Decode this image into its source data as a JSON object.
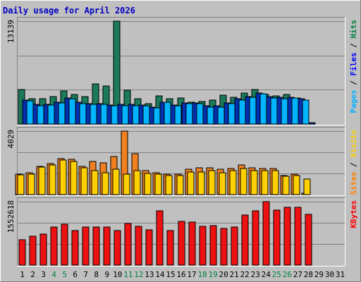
{
  "chart_data": {
    "type": "bar",
    "title": "Daily usage for April 2026",
    "x_labels": [
      "1",
      "2",
      "3",
      "4",
      "5",
      "6",
      "7",
      "8",
      "9",
      "10",
      "11",
      "12",
      "13",
      "14",
      "15",
      "16",
      "17",
      "18",
      "19",
      "20",
      "21",
      "22",
      "23",
      "24",
      "25",
      "26",
      "27",
      "28",
      "29",
      "30",
      "31"
    ],
    "weekend_days": [
      "4",
      "5",
      "11",
      "12",
      "18",
      "19",
      "25",
      "26"
    ],
    "panels": [
      {
        "id": "hits-files-pages",
        "max_label": "13139",
        "ymax": 13139,
        "label_parts": [
          {
            "text": "Pages",
            "color": "#00b0ff"
          },
          {
            "text": " / ",
            "color": "#000000"
          },
          {
            "text": "Files",
            "color": "#0000ff"
          },
          {
            "text": " / ",
            "color": "#000000"
          },
          {
            "text": "Hits",
            "color": "#008040"
          }
        ],
        "series": [
          {
            "name": "Hits",
            "color": "#1a7a5a",
            "values": [
              4400,
              3200,
              3200,
              3500,
              4200,
              3800,
              3500,
              5100,
              4900,
              13139,
              4300,
              3200,
              2600,
              3600,
              3200,
              3300,
              2800,
              2900,
              3100,
              3700,
              3400,
              4000,
              4400,
              3800,
              3600,
              3800,
              3300,
              0,
              0,
              0,
              0
            ]
          },
          {
            "name": "Files",
            "color": "#0030b0",
            "values": [
              3100,
              2500,
              2500,
              2800,
              3300,
              2800,
              2600,
              2600,
              2400,
              2500,
              2500,
              2400,
              2200,
              2800,
              2400,
              2700,
              2700,
              2300,
              2300,
              2700,
              3200,
              3500,
              4000,
              3500,
              3400,
              3400,
              3200,
              180,
              0,
              0,
              0
            ]
          },
          {
            "name": "Pages",
            "color": "#00b4ff",
            "values": [
              3000,
              2300,
              2400,
              2700,
              3200,
              2600,
              2500,
              2500,
              2300,
              2300,
              2300,
              2300,
              2100,
              2800,
              2300,
              2600,
              2600,
              2200,
              2200,
              2600,
              3100,
              3400,
              3900,
              3300,
              3200,
              3300,
              3100,
              0,
              0,
              0,
              0
            ]
          }
        ]
      },
      {
        "id": "visits-sites",
        "max_label": "4029",
        "ymax": 4029,
        "label_parts": [
          {
            "text": "Sites",
            "color": "#ff8000"
          },
          {
            "text": " / ",
            "color": "#000000"
          },
          {
            "text": "Visits",
            "color": "#ffd000"
          }
        ],
        "series": [
          {
            "name": "Visits",
            "color": "#f08020",
            "values": [
              1300,
              1400,
              1800,
              1950,
              2300,
              2250,
              1800,
              2100,
              2000,
              2400,
              4029,
              2600,
              1500,
              1400,
              1300,
              1300,
              1600,
              1700,
              1700,
              1600,
              1650,
              1900,
              1700,
              1650,
              1650,
              1200,
              1300,
              100,
              0,
              0,
              0
            ]
          },
          {
            "name": "Sites",
            "color": "#ffd000",
            "values": [
              1250,
              1300,
              1750,
              1900,
              2200,
              2100,
              1700,
              1500,
              1400,
              1600,
              1300,
              1500,
              1350,
              1300,
              1200,
              1200,
              1450,
              1450,
              1500,
              1400,
              1500,
              1650,
              1500,
              1500,
              1500,
              1150,
              1200,
              1000,
              0,
              0,
              0
            ]
          }
        ]
      },
      {
        "id": "kbytes",
        "max_label": "1552618",
        "ymax": 1552618,
        "label_parts": [
          {
            "text": "KBytes",
            "color": "#ff0000"
          }
        ],
        "series": [
          {
            "name": "KBytes",
            "color": "#ee1111",
            "values": [
              620000,
              700000,
              760000,
              940000,
              1000000,
              840000,
              940000,
              940000,
              940000,
              840000,
              1010000,
              950000,
              860000,
              1330000,
              850000,
              1070000,
              1060000,
              950000,
              960000,
              900000,
              940000,
              1220000,
              1330000,
              1552618,
              1350000,
              1420000,
              1410000,
              1240000,
              0,
              0,
              0
            ]
          }
        ]
      }
    ]
  }
}
